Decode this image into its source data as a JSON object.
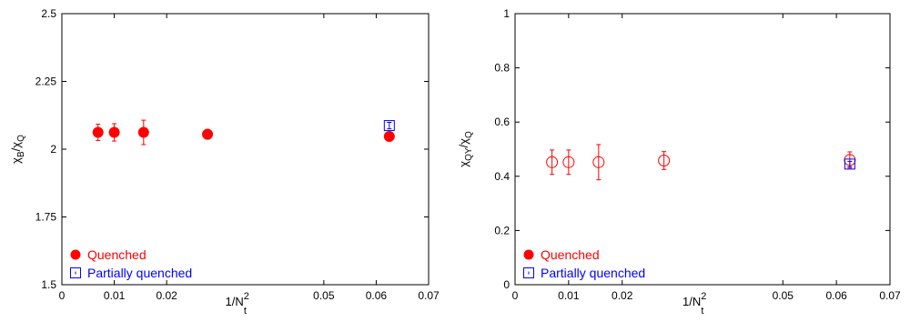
{
  "chart_data": [
    {
      "type": "scatter",
      "title": "",
      "xlabel": {
        "base": "1/N",
        "sup": "2",
        "sub": "t"
      },
      "ylabel": {
        "parts": [
          {
            "t": "χ"
          },
          {
            "t": "B",
            "sub": true
          },
          {
            "t": "/χ"
          },
          {
            "t": "Q",
            "sub": true
          }
        ]
      },
      "xlim": [
        0,
        0.07
      ],
      "ylim": [
        1.5,
        2.5
      ],
      "xticks": [
        {
          "v": 0,
          "label": "0"
        },
        {
          "v": 0.01,
          "label": "0.01"
        },
        {
          "v": 0.02,
          "label": "0.02"
        },
        {
          "v": 0.05,
          "label": "0.05"
        },
        {
          "v": 0.06,
          "label": "0.06"
        },
        {
          "v": 0.07,
          "label": "0.07"
        }
      ],
      "yticks": [
        {
          "v": 1.5,
          "label": "1.5"
        },
        {
          "v": 1.75,
          "label": "1.75"
        },
        {
          "v": 2.0,
          "label": "2"
        },
        {
          "v": 2.25,
          "label": "2.25"
        },
        {
          "v": 2.5,
          "label": "2.5"
        }
      ],
      "grid": false,
      "legend_position": "bottom-left",
      "series": [
        {
          "name": "Quenched",
          "color": "#ff0000",
          "marker": "filled-circle",
          "points": [
            {
              "x": 0.0069,
              "y": 2.062,
              "err": 0.03
            },
            {
              "x": 0.01,
              "y": 2.062,
              "err": 0.032
            },
            {
              "x": 0.0156,
              "y": 2.062,
              "err": 0.045
            },
            {
              "x": 0.0278,
              "y": 2.055,
              "err": 0.018
            },
            {
              "x": 0.0625,
              "y": 2.047,
              "err": 0.01
            }
          ]
        },
        {
          "name": "Partially quenched",
          "color": "#0000ff",
          "marker": "open-square",
          "points": [
            {
              "x": 0.0625,
              "y": 2.087,
              "err": 0.012
            }
          ]
        }
      ]
    },
    {
      "type": "scatter",
      "title": "",
      "xlabel": {
        "base": "1/N",
        "sup": "2",
        "sub": "t"
      },
      "ylabel": {
        "parts": [
          {
            "t": "χ"
          },
          {
            "t": "QY",
            "sub": true
          },
          {
            "t": "/χ"
          },
          {
            "t": "Q",
            "sub": true
          }
        ]
      },
      "xlim": [
        0,
        0.07
      ],
      "ylim": [
        0,
        1
      ],
      "xticks": [
        {
          "v": 0,
          "label": "0"
        },
        {
          "v": 0.01,
          "label": "0.01"
        },
        {
          "v": 0.02,
          "label": "0.02"
        },
        {
          "v": 0.05,
          "label": "0.05"
        },
        {
          "v": 0.06,
          "label": "0.06"
        },
        {
          "v": 0.07,
          "label": "0.07"
        }
      ],
      "yticks": [
        {
          "v": 0,
          "label": "0"
        },
        {
          "v": 0.2,
          "label": "0.2"
        },
        {
          "v": 0.4,
          "label": "0.4"
        },
        {
          "v": 0.6,
          "label": "0.6"
        },
        {
          "v": 0.8,
          "label": "0.8"
        },
        {
          "v": 1,
          "label": "1"
        }
      ],
      "grid": false,
      "legend_position": "bottom-left",
      "legend_marker_quenched": "filled-circle",
      "series": [
        {
          "name": "Quenched",
          "color": "#ff0000",
          "marker": "open-circle",
          "points": [
            {
              "x": 0.0069,
              "y": 0.452,
              "err": 0.045
            },
            {
              "x": 0.01,
              "y": 0.452,
              "err": 0.045
            },
            {
              "x": 0.0156,
              "y": 0.452,
              "err": 0.065
            },
            {
              "x": 0.0278,
              "y": 0.458,
              "err": 0.033
            },
            {
              "x": 0.0625,
              "y": 0.46,
              "err": 0.03
            }
          ]
        },
        {
          "name": "Partially quenched",
          "color": "#0000ff",
          "marker": "open-square",
          "points": [
            {
              "x": 0.0625,
              "y": 0.445,
              "err": 0.01
            }
          ]
        }
      ]
    }
  ]
}
